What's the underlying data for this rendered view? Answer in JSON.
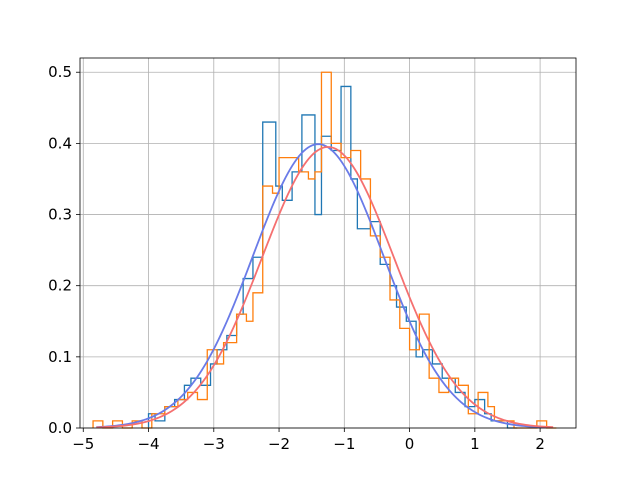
{
  "chart_data": {
    "type": "line",
    "title": "",
    "xlabel": "",
    "ylabel": "",
    "xlim": [
      -5.05,
      2.55
    ],
    "ylim": [
      0,
      0.52
    ],
    "grid": true,
    "legend": "none",
    "x_ticks": [
      {
        "value": -5,
        "label": "−5"
      },
      {
        "value": -4,
        "label": "−4"
      },
      {
        "value": -3,
        "label": "−3"
      },
      {
        "value": -2,
        "label": "−2"
      },
      {
        "value": -1,
        "label": "−1"
      },
      {
        "value": 0,
        "label": "0"
      },
      {
        "value": 1,
        "label": "1"
      },
      {
        "value": 2,
        "label": "2"
      }
    ],
    "y_ticks": [
      {
        "value": 0.0,
        "label": "0.0"
      },
      {
        "value": 0.1,
        "label": "0.1"
      },
      {
        "value": 0.2,
        "label": "0.2"
      },
      {
        "value": 0.3,
        "label": "0.3"
      },
      {
        "value": 0.4,
        "label": "0.4"
      },
      {
        "value": 0.5,
        "label": "0.5"
      }
    ],
    "series": [
      {
        "type": "step-histogram",
        "color": "#1f77b4",
        "x": [
          -4.0,
          -3.9,
          -3.75,
          -3.6,
          -3.45,
          -3.35,
          -3.2,
          -3.05,
          -2.95,
          -2.8,
          -2.65,
          -2.55,
          -2.4,
          -2.25,
          -2.05,
          -1.95,
          -1.8,
          -1.65,
          -1.45,
          -1.35,
          -1.2,
          -1.05,
          -0.9,
          -0.8,
          -0.6,
          -0.45,
          -0.3,
          -0.2,
          -0.05,
          0.1,
          0.2,
          0.35,
          0.5,
          0.7,
          0.85,
          1.0,
          1.15,
          1.25,
          1.5
        ],
        "y": [
          0.02,
          0.01,
          0.03,
          0.04,
          0.06,
          0.07,
          0.06,
          0.09,
          0.11,
          0.13,
          0.16,
          0.21,
          0.24,
          0.43,
          0.34,
          0.32,
          0.36,
          0.44,
          0.3,
          0.41,
          0.39,
          0.48,
          0.35,
          0.28,
          0.29,
          0.23,
          0.2,
          0.17,
          0.15,
          0.1,
          0.11,
          0.09,
          0.07,
          0.05,
          0.03,
          0.04,
          0.02,
          0.01,
          0.0
        ]
      },
      {
        "type": "step-histogram",
        "color": "#ff7f0e",
        "x": [
          -4.85,
          -4.7,
          -4.55,
          -4.4,
          -4.25,
          -4.1,
          -3.95,
          -3.75,
          -3.55,
          -3.4,
          -3.25,
          -3.1,
          -2.95,
          -2.85,
          -2.65,
          -2.5,
          -2.4,
          -2.25,
          -2.1,
          -2.0,
          -1.85,
          -1.7,
          -1.55,
          -1.45,
          -1.35,
          -1.2,
          -1.05,
          -0.9,
          -0.75,
          -0.6,
          -0.45,
          -0.3,
          -0.15,
          0.0,
          0.15,
          0.3,
          0.45,
          0.6,
          0.75,
          0.9,
          1.05,
          1.2,
          1.3,
          1.6,
          1.95,
          2.1
        ],
        "y": [
          0.01,
          0.0,
          0.01,
          0.0,
          0.01,
          0.0,
          0.02,
          0.03,
          0.04,
          0.05,
          0.04,
          0.11,
          0.09,
          0.12,
          0.16,
          0.15,
          0.19,
          0.34,
          0.33,
          0.38,
          0.38,
          0.36,
          0.35,
          0.36,
          0.5,
          0.4,
          0.38,
          0.39,
          0.35,
          0.27,
          0.24,
          0.18,
          0.14,
          0.11,
          0.16,
          0.07,
          0.05,
          0.07,
          0.06,
          0.02,
          0.05,
          0.03,
          0.01,
          0.0,
          0.01,
          0.0
        ]
      },
      {
        "type": "normal-curve",
        "color": "#6a7be8",
        "mean": -1.4,
        "std": 1.0,
        "x_range": [
          -4.8,
          2.1
        ]
      },
      {
        "type": "normal-curve",
        "color": "#f57070",
        "mean": -1.25,
        "std": 1.01,
        "x_range": [
          -4.8,
          2.2
        ]
      }
    ]
  }
}
